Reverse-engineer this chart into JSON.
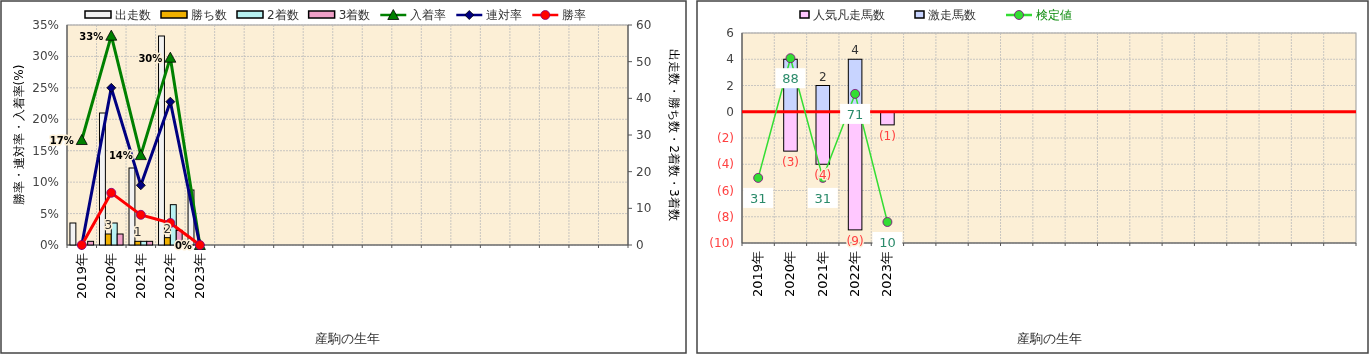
{
  "chart_data": [
    {
      "type": "bar",
      "xlabel": "産駒の生年",
      "ylabel": "勝率・連対率・入着率(%)",
      "y2label": "出走数・勝ち数・2着数・3着数",
      "legend": "top",
      "grid": true,
      "categories": [
        "2019年",
        "2020年",
        "2021年",
        "2022年",
        "2023年",
        null,
        null,
        null,
        null,
        null,
        null,
        null,
        null,
        null,
        null,
        null,
        null,
        null,
        null
      ],
      "ylim": [
        0,
        35
      ],
      "yticks": [
        {
          "value": 0,
          "label": "0%"
        },
        {
          "value": 5,
          "label": "5%"
        },
        {
          "value": 10,
          "label": "10%"
        },
        {
          "value": 15,
          "label": "15%"
        },
        {
          "value": 20,
          "label": "20%"
        },
        {
          "value": 25,
          "label": "25%"
        },
        {
          "value": 30,
          "label": "30%"
        },
        {
          "value": 35,
          "label": "35%"
        }
      ],
      "y2lim": [
        0,
        60
      ],
      "y2ticks": [
        0,
        10,
        20,
        30,
        40,
        50,
        60
      ],
      "series": [
        {
          "name": "出走数",
          "axis": "y2",
          "color": "#f2f2f2",
          "values": [
            6,
            36,
            21,
            57,
            15,
            null,
            null,
            null,
            null,
            null,
            null,
            null,
            null,
            null,
            null,
            null,
            null,
            null,
            null
          ]
        },
        {
          "name": "勝ち数",
          "axis": "y2",
          "color": "#f0b000",
          "values": [
            0,
            3,
            1,
            2,
            0,
            null,
            null,
            null,
            null,
            null,
            null,
            null,
            null,
            null,
            null,
            null,
            null,
            null,
            null
          ],
          "value_labels": [
            null,
            "3",
            "1",
            "2",
            null,
            null,
            null,
            null,
            null,
            null,
            null,
            null,
            null,
            null,
            null,
            null,
            null,
            null,
            null
          ]
        },
        {
          "name": "2着数",
          "axis": "y2",
          "color": "#b8f2f2",
          "values": [
            0,
            6,
            1,
            11,
            0,
            null,
            null,
            null,
            null,
            null,
            null,
            null,
            null,
            null,
            null,
            null,
            null,
            null,
            null
          ]
        },
        {
          "name": "3着数",
          "axis": "y2",
          "color": "#f0a0c8",
          "values": [
            1,
            3,
            1,
            4,
            0,
            null,
            null,
            null,
            null,
            null,
            null,
            null,
            null,
            null,
            null,
            null,
            null,
            null,
            null
          ]
        },
        {
          "name": "入着率",
          "type": "line",
          "color": "#008000",
          "marker": "triangle",
          "values": [
            16.7,
            33.3,
            14.3,
            29.8,
            0,
            null,
            null,
            null,
            null,
            null,
            null,
            null,
            null,
            null,
            null,
            null,
            null,
            null,
            null
          ],
          "value_labels": [
            "17%",
            "33%",
            "14%",
            "30%",
            "0%",
            null,
            null,
            null,
            null,
            null,
            null,
            null,
            null,
            null,
            null,
            null,
            null,
            null,
            null
          ]
        },
        {
          "name": "連対率",
          "type": "line",
          "color": "#000080",
          "marker": "diamond",
          "values": [
            0,
            25,
            9.5,
            22.8,
            0,
            null,
            null,
            null,
            null,
            null,
            null,
            null,
            null,
            null,
            null,
            null,
            null,
            null,
            null
          ]
        },
        {
          "name": "勝率",
          "type": "line",
          "color": "#ff0000",
          "marker": "circle",
          "values": [
            0,
            8.3,
            4.8,
            3.5,
            0,
            null,
            null,
            null,
            null,
            null,
            null,
            null,
            null,
            null,
            null,
            null,
            null,
            null,
            null
          ]
        }
      ]
    },
    {
      "type": "bar",
      "stacked": true,
      "xlabel": "産駒の生年",
      "legend": "top",
      "grid": true,
      "categories": [
        "2019年",
        "2020年",
        "2021年",
        "2022年",
        "2023年",
        null,
        null,
        null,
        null,
        null,
        null,
        null,
        null,
        null,
        null,
        null,
        null,
        null,
        null
      ],
      "ylim": [
        -10,
        6
      ],
      "yticks": [
        {
          "value": -10,
          "label": "(10)"
        },
        {
          "value": -8,
          "label": "(8)"
        },
        {
          "value": -6,
          "label": "(6)"
        },
        {
          "value": -4,
          "label": "(4)"
        },
        {
          "value": -2,
          "label": "(2)"
        },
        0,
        2,
        4,
        6
      ],
      "y2lim": [
        0,
        100
      ],
      "ref_lines": [
        {
          "axis": "y",
          "value": 0,
          "color": "#ff0000"
        }
      ],
      "series": [
        {
          "name": "人気凡走馬数",
          "color": "#ffc8ff",
          "values": [
            0,
            -3,
            -4,
            -9,
            -1,
            null,
            null,
            null,
            null,
            null,
            null,
            null,
            null,
            null,
            null,
            null,
            null,
            null,
            null
          ],
          "value_labels": [
            null,
            "(3)",
            "(4)",
            "(9)",
            "(1)",
            null,
            null,
            null,
            null,
            null,
            null,
            null,
            null,
            null,
            null,
            null,
            null,
            null,
            null
          ]
        },
        {
          "name": "激走馬数",
          "color": "#c8d4ff",
          "values": [
            0,
            4,
            2,
            4,
            0,
            null,
            null,
            null,
            null,
            null,
            null,
            null,
            null,
            null,
            null,
            null,
            null,
            null,
            null
          ],
          "value_labels": [
            null,
            null,
            "2",
            "4",
            null,
            null,
            null,
            null,
            null,
            null,
            null,
            null,
            null,
            null,
            null,
            null,
            null,
            null,
            null
          ]
        },
        {
          "name": "検定値",
          "type": "line",
          "axis": "y2",
          "color": "#33dd33",
          "marker": "circle",
          "values": [
            31,
            88,
            31,
            71,
            10,
            null,
            null,
            null,
            null,
            null,
            null,
            null,
            null,
            null,
            null,
            null,
            null,
            null,
            null
          ],
          "value_labels": [
            "31",
            "88",
            "31",
            "71",
            "10",
            null,
            null,
            null,
            null,
            null,
            null,
            null,
            null,
            null,
            null,
            null,
            null,
            null,
            null
          ]
        }
      ]
    }
  ]
}
